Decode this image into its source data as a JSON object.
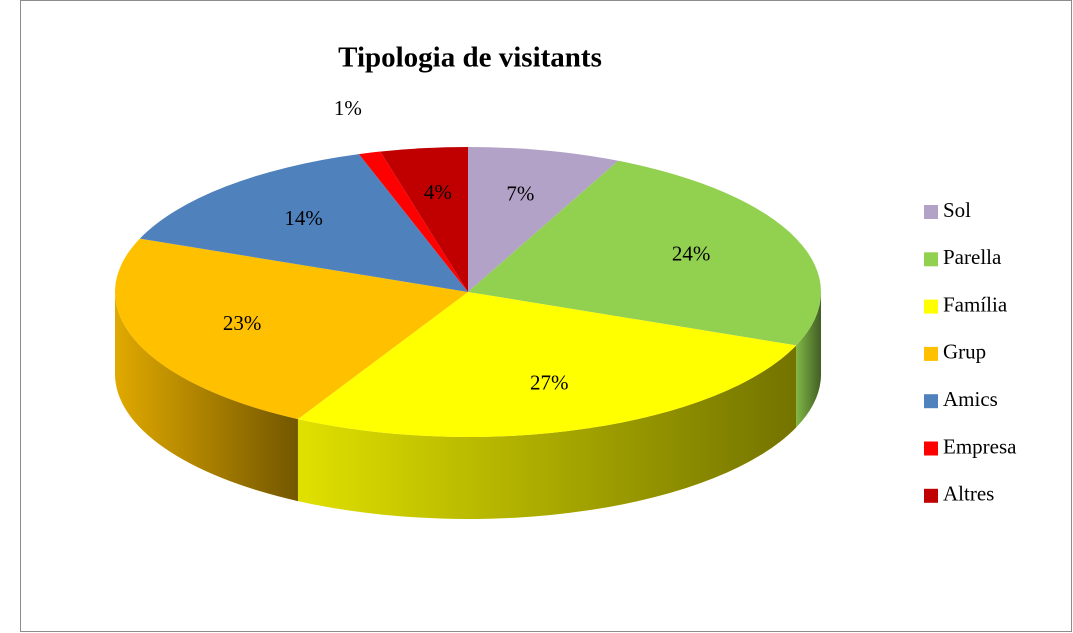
{
  "chart_data": {
    "type": "pie",
    "title": "Tipologia de visitants",
    "categories": [
      "Sol",
      "Parella",
      "Família",
      "Grup",
      "Amics",
      "Empresa",
      "Altres"
    ],
    "values": [
      7,
      24,
      27,
      23,
      14,
      1,
      4
    ],
    "value_labels": [
      "7%",
      "24%",
      "27%",
      "23%",
      "14%",
      "1%",
      "4%"
    ],
    "colors": [
      "#b3a2c7",
      "#92d050",
      "#ffff00",
      "#ffc000",
      "#4f81bd",
      "#ff0000",
      "#c00000"
    ],
    "legend": "right"
  }
}
